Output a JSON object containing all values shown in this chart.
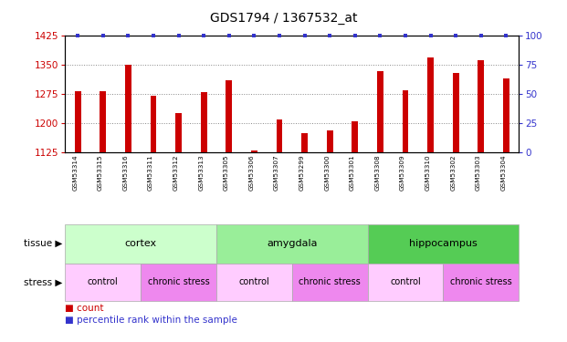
{
  "title": "GDS1794 / 1367532_at",
  "samples": [
    "GSM53314",
    "GSM53315",
    "GSM53316",
    "GSM53311",
    "GSM53312",
    "GSM53313",
    "GSM53305",
    "GSM53306",
    "GSM53307",
    "GSM53299",
    "GSM53300",
    "GSM53301",
    "GSM53308",
    "GSM53309",
    "GSM53310",
    "GSM53302",
    "GSM53303",
    "GSM53304"
  ],
  "counts": [
    1283,
    1282,
    1350,
    1270,
    1225,
    1280,
    1310,
    1130,
    1210,
    1175,
    1180,
    1205,
    1335,
    1285,
    1370,
    1330,
    1362,
    1315
  ],
  "percentiles": [
    100,
    100,
    100,
    100,
    100,
    100,
    100,
    100,
    100,
    100,
    100,
    100,
    100,
    100,
    100,
    100,
    100,
    100
  ],
  "ylim_left": [
    1125,
    1425
  ],
  "ylim_right": [
    0,
    100
  ],
  "yticks_left": [
    1125,
    1200,
    1275,
    1350,
    1425
  ],
  "yticks_right": [
    0,
    25,
    50,
    75,
    100
  ],
  "bar_color": "#cc0000",
  "dot_color": "#3333cc",
  "tissue_groups": [
    {
      "label": "cortex",
      "start": 0,
      "end": 6,
      "color": "#ccffcc"
    },
    {
      "label": "amygdala",
      "start": 6,
      "end": 12,
      "color": "#99ee99"
    },
    {
      "label": "hippocampus",
      "start": 12,
      "end": 18,
      "color": "#55cc55"
    }
  ],
  "stress_groups": [
    {
      "label": "control",
      "start": 0,
      "end": 3,
      "color": "#ffccff"
    },
    {
      "label": "chronic stress",
      "start": 3,
      "end": 6,
      "color": "#ee88ee"
    },
    {
      "label": "control",
      "start": 6,
      "end": 9,
      "color": "#ffccff"
    },
    {
      "label": "chronic stress",
      "start": 9,
      "end": 12,
      "color": "#ee88ee"
    },
    {
      "label": "control",
      "start": 12,
      "end": 15,
      "color": "#ffccff"
    },
    {
      "label": "chronic stress",
      "start": 15,
      "end": 18,
      "color": "#ee88ee"
    }
  ],
  "tissue_label": "tissue",
  "stress_label": "stress",
  "legend_count_label": "count",
  "legend_pct_label": "percentile rank within the sample",
  "bg_color": "#ffffff",
  "axis_color": "#cc0000",
  "right_axis_color": "#3333cc",
  "grid_color": "#888888"
}
